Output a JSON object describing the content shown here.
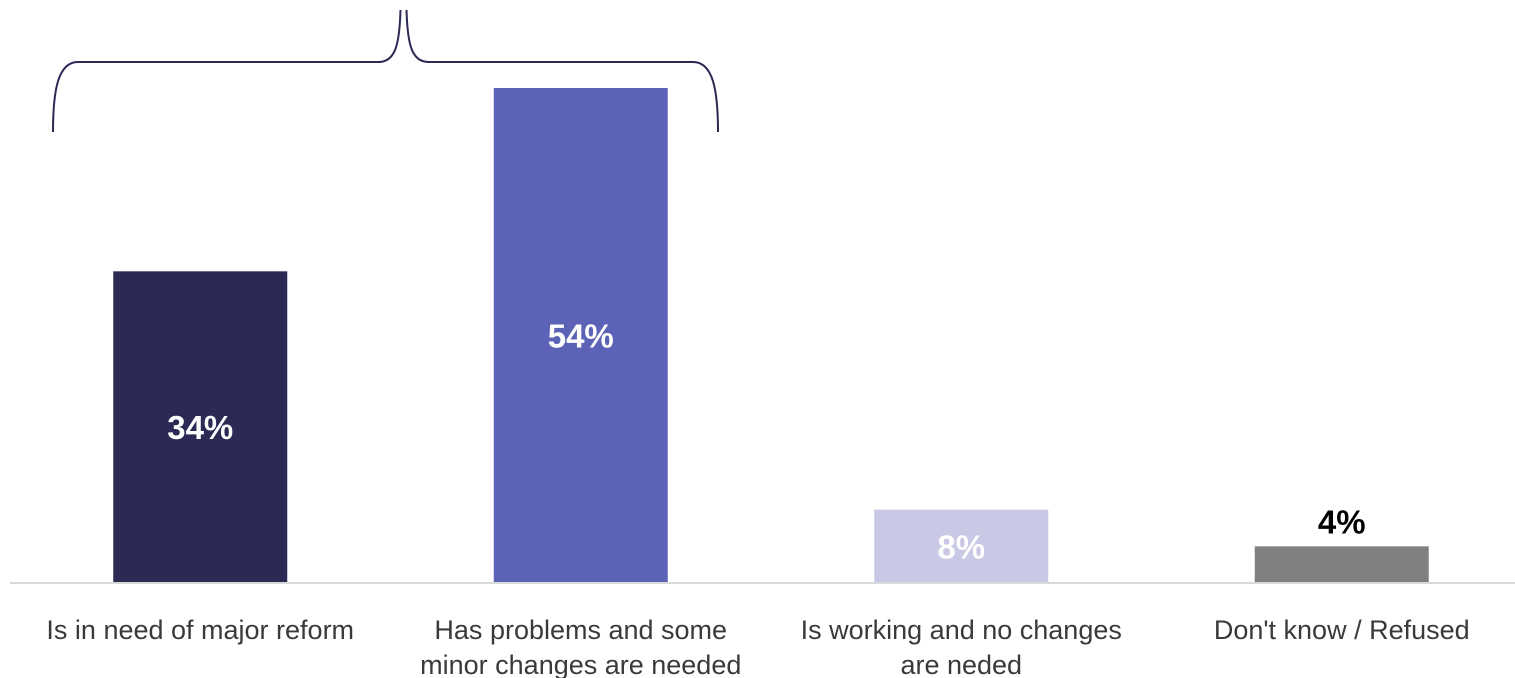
{
  "chart_data": {
    "type": "bar",
    "categories": [
      [
        "Is in need of major reform"
      ],
      [
        "Has problems and some",
        "minor changes are needed"
      ],
      [
        "Is working and no changes",
        "are neded"
      ],
      [
        "Don't know / Refused"
      ]
    ],
    "values": [
      34,
      54,
      8,
      4
    ],
    "value_labels": [
      "34%",
      "54%",
      "8%",
      "4%"
    ],
    "colors": [
      "#2a2a55",
      "#5c63b7",
      "#c9c9e6",
      "#808080"
    ],
    "value_label_colors": [
      "#ffffff",
      "#ffffff",
      "#ffffff",
      "#000000"
    ],
    "value_label_position": [
      "inside",
      "inside",
      "inside",
      "above"
    ],
    "ylim": [
      0,
      54
    ],
    "grid": false,
    "legend": "none",
    "brace_over_categories": [
      0,
      1
    ],
    "brace_color": "#2a2a55",
    "axis_color": "#d9d9d9"
  }
}
